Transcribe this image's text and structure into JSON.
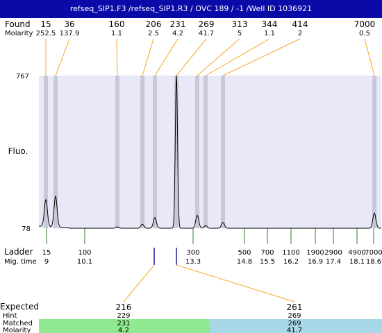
{
  "title": "refseq_SIP1.F3 /refseq_SIP1.R3 / OVC 189 / -1 /Well ID 1036921",
  "labels": {
    "found": "Found",
    "molarity": "Molarity",
    "fluo": "Fluo.",
    "ladder": "Ladder",
    "mig_time": "Mig. time",
    "expected": "Expected",
    "hint": "Hint",
    "matched": "Matched",
    "molarity_bottom": "Molarity"
  },
  "colors": {
    "title_bg": "#0a0aa8",
    "plot_bg": "#e8e8f8",
    "band": "#c8c8d8",
    "ladder_tick": "#2e7d2e",
    "expected_line": "#f5a623",
    "matched_green": "#90e890",
    "matched_blue": "#a8d8e8"
  },
  "chart_data": {
    "type": "line",
    "ylabel": "Fluo.",
    "ylim": [
      78,
      767
    ],
    "y_ticks": [
      "767",
      "78"
    ],
    "found": [
      {
        "size": "15",
        "molarity": "252.5"
      },
      {
        "size": "36",
        "molarity": "137.9"
      },
      {
        "size": "160",
        "molarity": "1.1"
      },
      {
        "size": "206",
        "molarity": "2.5"
      },
      {
        "size": "231",
        "molarity": "4.2"
      },
      {
        "size": "269",
        "molarity": "41.7"
      },
      {
        "size": "313",
        "molarity": "5"
      },
      {
        "size": "344",
        "molarity": "1.1"
      },
      {
        "size": "414",
        "molarity": "2"
      },
      {
        "size": "7000",
        "molarity": "0.5"
      }
    ],
    "ladder": [
      {
        "size": "15",
        "mig_time": "9"
      },
      {
        "size": "100",
        "mig_time": "10.1"
      },
      {
        "size": "300",
        "mig_time": "13.3"
      },
      {
        "size": "500",
        "mig_time": "14.8"
      },
      {
        "size": "700",
        "mig_time": "15.5"
      },
      {
        "size": "1100",
        "mig_time": "16.2"
      },
      {
        "size": "1900",
        "mig_time": "16.9"
      },
      {
        "size": "2900",
        "mig_time": "17.4"
      },
      {
        "size": "4900",
        "mig_time": "18.1"
      },
      {
        "size": "7000",
        "mig_time": "18.6"
      }
    ],
    "expected": [
      {
        "size": "216",
        "hint": "229",
        "matched": "231",
        "molarity": "4.2"
      },
      {
        "size": "261",
        "hint": "269",
        "matched": "269",
        "molarity": "41.7"
      }
    ],
    "peaks": [
      {
        "size": 15,
        "height": 122
      },
      {
        "size": 36,
        "height": 140
      },
      {
        "size": 160,
        "height": 6
      },
      {
        "size": 206,
        "height": 18
      },
      {
        "size": 231,
        "height": 48
      },
      {
        "size": 269,
        "height": 689
      },
      {
        "size": 313,
        "height": 58
      },
      {
        "size": 344,
        "height": 12
      },
      {
        "size": 414,
        "height": 26
      },
      {
        "size": 7000,
        "height": 68
      }
    ]
  }
}
